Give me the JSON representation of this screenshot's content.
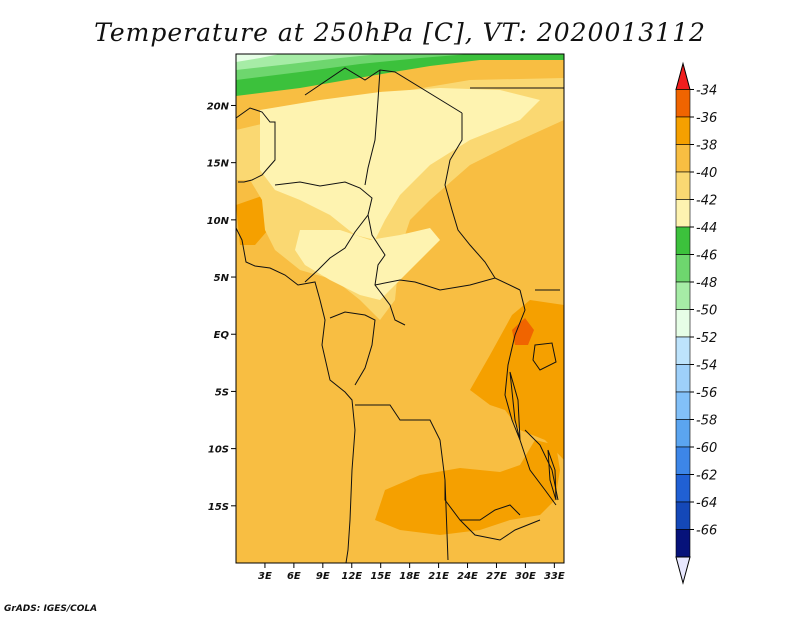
{
  "title": "Temperature at 250hPa [C], VT: 2020013112",
  "credit": "GrADS: IGES/COLA",
  "map": {
    "lon_range": [
      0,
      34
    ],
    "lat_range": [
      -20,
      24.5
    ],
    "x_ticks": [
      {
        "lon": 3,
        "label": "3E"
      },
      {
        "lon": 6,
        "label": "6E"
      },
      {
        "lon": 9,
        "label": "9E"
      },
      {
        "lon": 12,
        "label": "12E"
      },
      {
        "lon": 15,
        "label": "15E"
      },
      {
        "lon": 18,
        "label": "18E"
      },
      {
        "lon": 21,
        "label": "21E"
      },
      {
        "lon": 24,
        "label": "24E"
      },
      {
        "lon": 27,
        "label": "27E"
      },
      {
        "lon": 30,
        "label": "30E"
      },
      {
        "lon": 33,
        "label": "33E"
      }
    ],
    "y_ticks": [
      {
        "lat": 20,
        "label": "20N"
      },
      {
        "lat": 15,
        "label": "15N"
      },
      {
        "lat": 10,
        "label": "10N"
      },
      {
        "lat": 5,
        "label": "5N"
      },
      {
        "lat": 0,
        "label": "EQ"
      },
      {
        "lat": -5,
        "label": "5S"
      },
      {
        "lat": -10,
        "label": "10S"
      },
      {
        "lat": -15,
        "label": "15S"
      }
    ]
  },
  "colorbar": {
    "levels": [
      "-34",
      "-36",
      "-38",
      "-40",
      "-42",
      "-44",
      "-46",
      "-48",
      "-50",
      "-52",
      "-54",
      "-56",
      "-58",
      "-60",
      "-62",
      "-64",
      "-66"
    ],
    "top_color": "#f01e1e",
    "bottom_color": "#e8e8ff",
    "colors": [
      "#f06400",
      "#f5a000",
      "#f8be42",
      "#fad872",
      "#fef3b0",
      "#3cc13c",
      "#6ed66e",
      "#a6eca6",
      "#e6fee6",
      "#bde3fc",
      "#9ed0fa",
      "#82c0f8",
      "#5ba5f0",
      "#3d86e8",
      "#2060d4",
      "#1448b8",
      "#06127a"
    ]
  },
  "field_colors": {
    "c_m36": "#f06400",
    "c_m38": "#f5a000",
    "c_m40": "#f8be42",
    "c_m42": "#fad872",
    "c_m44": "#fef3b0",
    "c_m46": "#3cc13c",
    "c_m48": "#6ed66e",
    "c_m50": "#a6eca6",
    "c_m52": "#e6fee6"
  }
}
